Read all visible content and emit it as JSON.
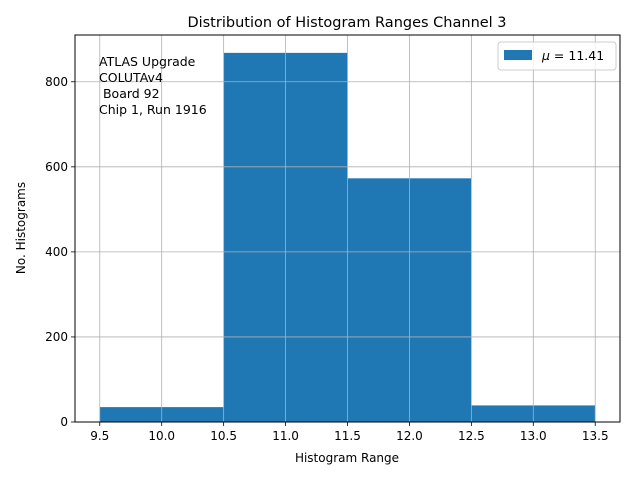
{
  "chart_data": {
    "type": "bar",
    "title": "Distribution of Histogram Ranges Channel 3",
    "xlabel": "Histogram Range",
    "ylabel": "No. Histograms",
    "bin_edges": [
      9.5,
      10.5,
      11.5,
      12.5,
      13.5
    ],
    "values": [
      35,
      868,
      573,
      39
    ],
    "xlim": [
      9.3,
      13.7
    ],
    "ylim": [
      0,
      910
    ],
    "xticks": [
      "9.5",
      "10.0",
      "10.5",
      "11.0",
      "11.5",
      "12.0",
      "12.5",
      "13.0",
      "13.5"
    ],
    "xtick_values": [
      9.5,
      10.0,
      10.5,
      11.0,
      11.5,
      12.0,
      12.5,
      13.0,
      13.5
    ],
    "yticks": [
      "0",
      "200",
      "400",
      "600",
      "800"
    ],
    "ytick_values": [
      0,
      200,
      400,
      600,
      800
    ],
    "grid": true,
    "legend": {
      "placement": "top-right",
      "symbol": "μ",
      "text": " = 11.41"
    },
    "annotation_lines": [
      "ATLAS Upgrade",
      "COLUTAv4",
      " Board 92",
      "Chip 1, Run 1916"
    ],
    "colors": {
      "bar": "#1f77b4",
      "grid": "#b0b0b0"
    }
  }
}
